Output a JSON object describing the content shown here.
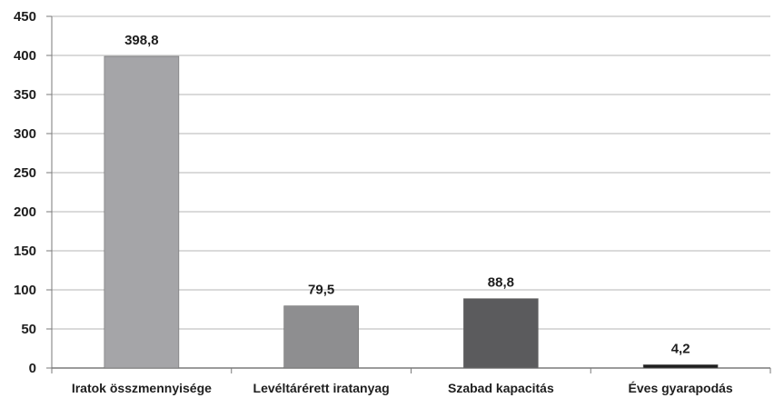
{
  "chart_data": {
    "type": "bar",
    "title": "",
    "xlabel": "",
    "ylabel": "",
    "categories": [
      "Iratok összmennyisége",
      "Levéltárérett iratanyag",
      "Szabad kapacitás",
      "Éves gyarapodás"
    ],
    "values": [
      398.8,
      79.5,
      88.8,
      4.2
    ],
    "value_labels": [
      "398,8",
      "79,5",
      "88,8",
      "4,2"
    ],
    "bar_colors": [
      "#a5a5a8",
      "#8e8e90",
      "#5b5b5d",
      "#1f1f1f"
    ],
    "ylim": [
      0,
      450
    ],
    "yticks": [
      0,
      50,
      100,
      150,
      200,
      250,
      300,
      350,
      400,
      450
    ],
    "grid": true,
    "legend": "none"
  }
}
